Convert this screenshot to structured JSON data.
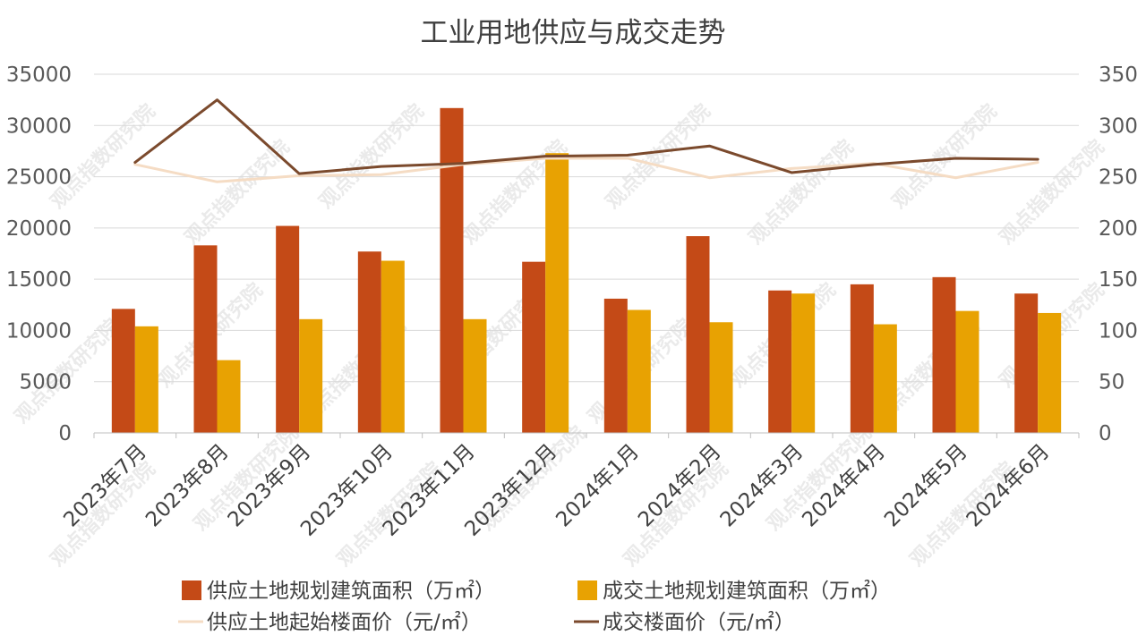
{
  "chart_data": {
    "type": "bar",
    "title": "工业用地供应与成交走势",
    "watermark": "观点指数研究院",
    "categories": [
      "2023年7月",
      "2023年8月",
      "2023年9月",
      "2023年10月",
      "2023年11月",
      "2023年12月",
      "2024年1月",
      "2024年2月",
      "2024年3月",
      "2024年4月",
      "2024年5月",
      "2024年6月"
    ],
    "ylim_left": [
      0,
      35000
    ],
    "yticks_left": [
      "0",
      "5000",
      "10000",
      "15000",
      "20000",
      "25000",
      "30000",
      "35000"
    ],
    "ylim_right": [
      0,
      350
    ],
    "yticks_right": [
      "0",
      "50",
      "100",
      "150",
      "200",
      "250",
      "300",
      "350"
    ],
    "grid": true,
    "legend_position": "bottom",
    "bar_series": [
      {
        "name": "供应土地规划建筑面积（万㎡）",
        "color": "#c44a17",
        "values": [
          12100,
          18300,
          20200,
          17700,
          31700,
          16700,
          13100,
          19200,
          13900,
          14500,
          15200,
          13600
        ]
      },
      {
        "name": "成交土地规划建筑面积（万㎡）",
        "color": "#e8a202",
        "values": [
          10400,
          7100,
          11100,
          16800,
          11100,
          27300,
          12000,
          10800,
          13600,
          10600,
          11900,
          11700
        ]
      }
    ],
    "line_series": [
      {
        "name": "供应土地起始楼面价（元/㎡）",
        "color": "#f5dcc4",
        "axis": "right",
        "values": [
          262,
          245,
          251,
          252,
          262,
          268,
          268,
          249,
          258,
          263,
          249,
          264
        ]
      },
      {
        "name": "成交楼面价（元/㎡）",
        "color": "#7b4a2d",
        "axis": "right",
        "values": [
          264,
          325,
          253,
          260,
          263,
          270,
          271,
          280,
          254,
          262,
          268,
          267
        ]
      }
    ]
  }
}
